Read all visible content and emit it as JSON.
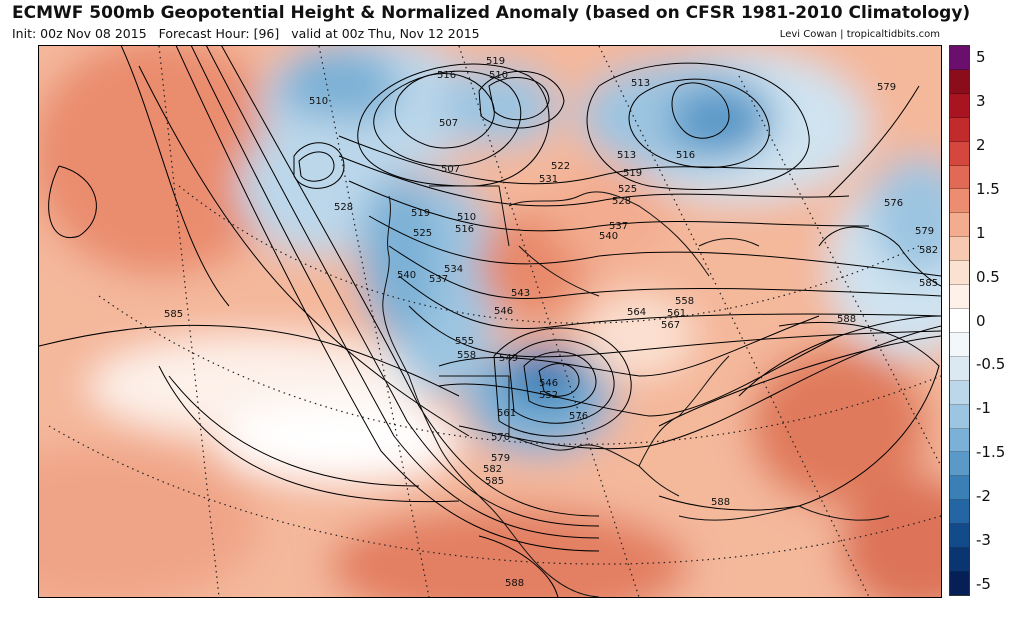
{
  "header": {
    "title": "ECMWF 500mb Geopotential Height & Normalized Anomaly (based on CFSR 1981-2010 Climatology)",
    "init": "Init: 00z Nov 08 2015",
    "forecast_hour": "Forecast Hour: [96]",
    "valid": "valid at 00z Thu, Nov 12 2015",
    "credit": "Levi Cowan | tropicaltidbits.com"
  },
  "colorbar": {
    "segments": [
      "#6a0f6e",
      "#8b0d1c",
      "#a8141f",
      "#c22b2b",
      "#d4473f",
      "#e06a56",
      "#ec8d72",
      "#f3ac8f",
      "#f8c9b1",
      "#fbe1d2",
      "#fdf1ea",
      "#ffffff",
      "#f2f7fb",
      "#dbe9f3",
      "#bcd7ea",
      "#9cc5e1",
      "#7bb1d6",
      "#5a99c8",
      "#3b7fb7",
      "#2465a3",
      "#134b8a",
      "#0a3571",
      "#061f57"
    ],
    "labels": [
      "5",
      "3",
      "2",
      "1.5",
      "1",
      "0.5",
      "0",
      "-0.5",
      "-1",
      "-1.5",
      "-2",
      "-3",
      "-5"
    ]
  },
  "contour_labels": [
    {
      "text": "519"
    },
    {
      "text": "510"
    },
    {
      "text": "516"
    },
    {
      "text": "510"
    },
    {
      "text": "513"
    },
    {
      "text": "579"
    },
    {
      "text": "507"
    },
    {
      "text": "513"
    },
    {
      "text": "516"
    },
    {
      "text": "522"
    },
    {
      "text": "531"
    },
    {
      "text": "519"
    },
    {
      "text": "525"
    },
    {
      "text": "528"
    },
    {
      "text": "507"
    },
    {
      "text": "528"
    },
    {
      "text": "519"
    },
    {
      "text": "510"
    },
    {
      "text": "516"
    },
    {
      "text": "525"
    },
    {
      "text": "537"
    },
    {
      "text": "540"
    },
    {
      "text": "576"
    },
    {
      "text": "579"
    },
    {
      "text": "582"
    },
    {
      "text": "534"
    },
    {
      "text": "540"
    },
    {
      "text": "537"
    },
    {
      "text": "543"
    },
    {
      "text": "585"
    },
    {
      "text": "558"
    },
    {
      "text": "561"
    },
    {
      "text": "564"
    },
    {
      "text": "567"
    },
    {
      "text": "546"
    },
    {
      "text": "585"
    },
    {
      "text": "588"
    },
    {
      "text": "555"
    },
    {
      "text": "558"
    },
    {
      "text": "549"
    },
    {
      "text": "546"
    },
    {
      "text": "552"
    },
    {
      "text": "561"
    },
    {
      "text": "576"
    },
    {
      "text": "570"
    },
    {
      "text": "579"
    },
    {
      "text": "582"
    },
    {
      "text": "585"
    },
    {
      "text": "588"
    },
    {
      "text": "588"
    }
  ]
}
